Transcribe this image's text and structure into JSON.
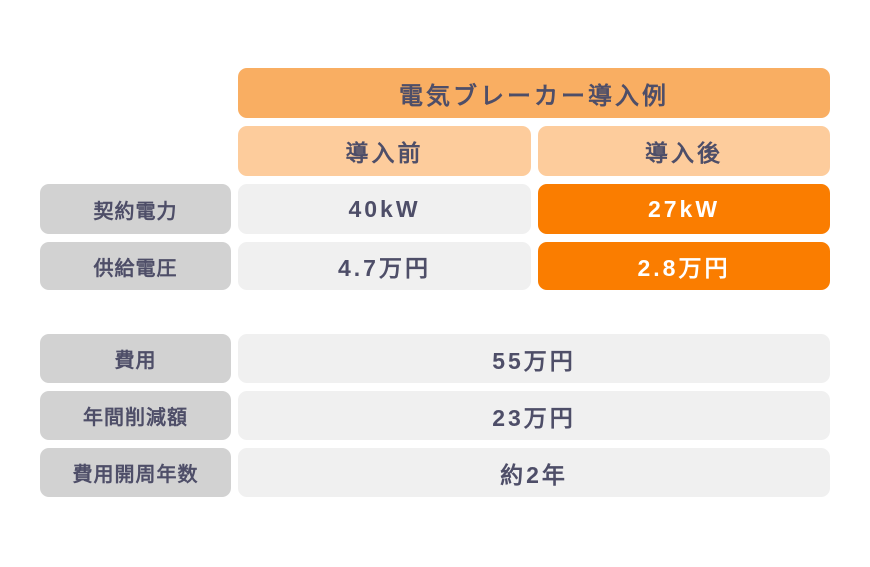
{
  "colors": {
    "title_bg": "#F9AE62",
    "header_bg": "#FDCC9C",
    "highlight_bg": "#FA7D00",
    "label_bg": "#D2D2D2",
    "cell_bg": "#F0F0F0",
    "text": "#4E4E68",
    "highlight_text": "#FFFFFF"
  },
  "table": {
    "title": "電気ブレーカー導入例",
    "columns": [
      "導入前",
      "導入後"
    ],
    "comparison_rows": [
      {
        "label": "契約電力",
        "before": "40kW",
        "after": "27kW"
      },
      {
        "label": "供給電圧",
        "before": "4.7万円",
        "after": "2.8万円"
      }
    ],
    "summary_rows": [
      {
        "label": "費用",
        "value": "55万円"
      },
      {
        "label": "年間削減額",
        "value": "23万円"
      },
      {
        "label": "費用開周年数",
        "value": "約2年"
      }
    ]
  },
  "chart_data": {
    "type": "table",
    "title": "電気ブレーカー導入例",
    "columns": [
      "",
      "導入前",
      "導入後"
    ],
    "rows": [
      [
        "契約電力",
        "40kW",
        "27kW"
      ],
      [
        "供給電圧",
        "4.7万円",
        "2.8万円"
      ],
      [
        "費用",
        "55万円",
        "55万円"
      ],
      [
        "年間削減額",
        "23万円",
        "23万円"
      ],
      [
        "費用開周年数",
        "約2年",
        "約2年"
      ]
    ],
    "notes": "導入後 column cells for 契約電力 and 供給電圧 are highlighted in orange; 費用 / 年間削減額 / 費用開周年数 values span both columns",
    "legend_position": "none",
    "grid": false
  }
}
